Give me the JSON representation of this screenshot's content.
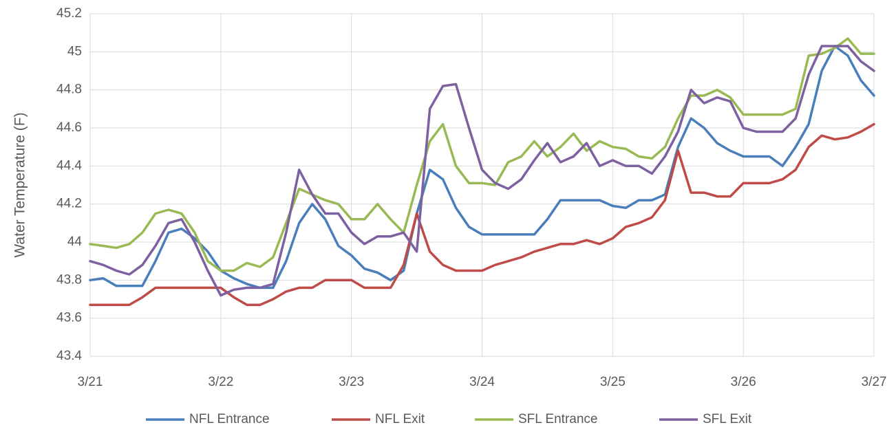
{
  "chart_data": {
    "type": "line",
    "y_label": "Water Temperature (F)",
    "categories": [
      "3/21",
      null,
      null,
      null,
      null,
      null,
      null,
      null,
      null,
      null,
      "3/22",
      null,
      null,
      null,
      null,
      null,
      null,
      null,
      null,
      null,
      "3/23",
      null,
      null,
      null,
      null,
      null,
      null,
      null,
      null,
      null,
      "3/24",
      null,
      null,
      null,
      null,
      null,
      null,
      null,
      null,
      null,
      "3/25",
      null,
      null,
      null,
      null,
      null,
      null,
      null,
      null,
      null,
      "3/26",
      null,
      null,
      null,
      null,
      null,
      null,
      null,
      null,
      null,
      "3/27"
    ],
    "ylim": [
      43.4,
      45.2
    ],
    "yticks": [
      43.4,
      43.6,
      43.8,
      44,
      44.2,
      44.4,
      44.6,
      44.8,
      45,
      45.2
    ],
    "grid": true,
    "legend": "bottom",
    "series": [
      {
        "name": "NFL Entrance",
        "color": "#4a7ebb",
        "values": [
          43.8,
          43.81,
          43.77,
          43.77,
          43.77,
          43.9,
          44.05,
          44.07,
          44.02,
          43.95,
          43.85,
          43.81,
          43.78,
          43.76,
          43.76,
          43.9,
          44.1,
          44.2,
          44.12,
          43.98,
          43.93,
          43.86,
          43.84,
          43.8,
          43.85,
          44.15,
          44.38,
          44.33,
          44.18,
          44.08,
          44.04,
          44.04,
          44.04,
          44.04,
          44.04,
          44.12,
          44.22,
          44.22,
          44.22,
          44.22,
          44.19,
          44.18,
          44.22,
          44.22,
          44.25,
          44.5,
          44.65,
          44.6,
          44.52,
          44.48,
          44.45,
          44.45,
          44.45,
          44.4,
          44.5,
          44.62,
          44.9,
          45.03,
          44.98,
          44.85,
          44.77
        ]
      },
      {
        "name": "NFL Exit",
        "color": "#be4b48",
        "values": [
          43.67,
          43.67,
          43.67,
          43.67,
          43.71,
          43.76,
          43.76,
          43.76,
          43.76,
          43.76,
          43.76,
          43.71,
          43.67,
          43.67,
          43.7,
          43.74,
          43.76,
          43.76,
          43.8,
          43.8,
          43.8,
          43.76,
          43.76,
          43.76,
          43.88,
          44.15,
          43.95,
          43.88,
          43.85,
          43.85,
          43.85,
          43.88,
          43.9,
          43.92,
          43.95,
          43.97,
          43.99,
          43.99,
          44.01,
          43.99,
          44.02,
          44.08,
          44.1,
          44.13,
          44.22,
          44.48,
          44.26,
          44.26,
          44.24,
          44.24,
          44.31,
          44.31,
          44.31,
          44.33,
          44.38,
          44.5,
          44.56,
          44.54,
          44.55,
          44.58,
          44.62
        ]
      },
      {
        "name": "SFL Entrance",
        "color": "#98b954",
        "values": [
          43.99,
          43.98,
          43.97,
          43.99,
          44.05,
          44.15,
          44.17,
          44.15,
          44.05,
          43.9,
          43.85,
          43.85,
          43.89,
          43.87,
          43.92,
          44.1,
          44.28,
          44.25,
          44.22,
          44.2,
          44.12,
          44.12,
          44.2,
          44.12,
          44.05,
          44.3,
          44.53,
          44.62,
          44.4,
          44.31,
          44.31,
          44.3,
          44.42,
          44.45,
          44.53,
          44.45,
          44.5,
          44.57,
          44.48,
          44.53,
          44.5,
          44.49,
          44.45,
          44.44,
          44.5,
          44.65,
          44.77,
          44.77,
          44.8,
          44.76,
          44.67,
          44.67,
          44.67,
          44.67,
          44.7,
          44.98,
          44.99,
          45.02,
          45.07,
          44.99,
          44.99
        ]
      },
      {
        "name": "SFL Exit",
        "color": "#7d60a0",
        "values": [
          43.9,
          43.88,
          43.85,
          43.83,
          43.88,
          43.98,
          44.1,
          44.12,
          44.0,
          43.85,
          43.72,
          43.75,
          43.76,
          43.76,
          43.78,
          44.05,
          44.38,
          44.25,
          44.15,
          44.15,
          44.05,
          43.99,
          44.03,
          44.03,
          44.05,
          43.95,
          44.7,
          44.82,
          44.83,
          44.6,
          44.38,
          44.31,
          44.28,
          44.33,
          44.43,
          44.52,
          44.42,
          44.45,
          44.52,
          44.4,
          44.43,
          44.4,
          44.4,
          44.36,
          44.45,
          44.58,
          44.8,
          44.73,
          44.76,
          44.74,
          44.6,
          44.58,
          44.58,
          44.58,
          44.65,
          44.88,
          45.03,
          45.03,
          45.03,
          44.95,
          44.9
        ]
      }
    ]
  }
}
